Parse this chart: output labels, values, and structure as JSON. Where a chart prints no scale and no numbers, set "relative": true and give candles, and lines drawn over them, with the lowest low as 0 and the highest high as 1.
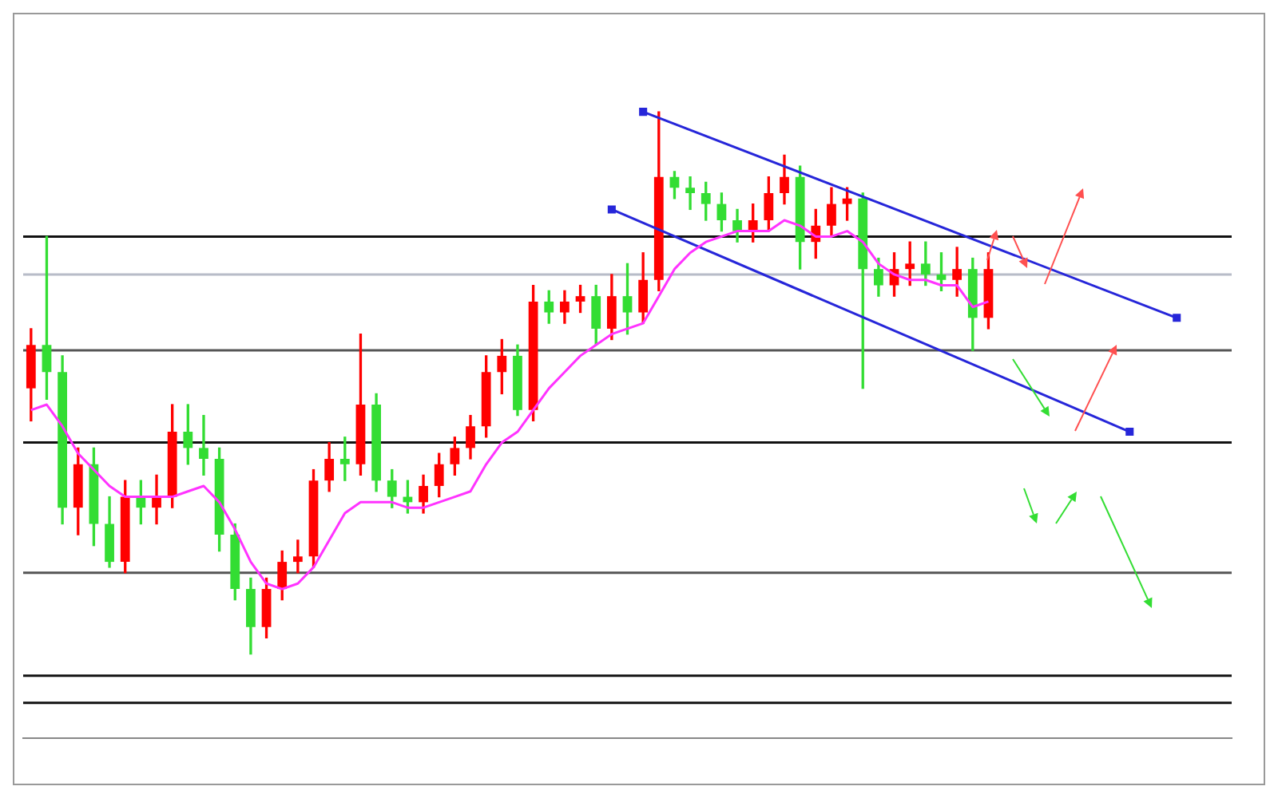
{
  "chart_data": {
    "type": "candlestick",
    "relative": true,
    "legend": false,
    "grid": false,
    "categories": [
      null,
      null,
      null,
      null,
      null,
      null,
      null,
      null,
      null,
      null,
      null,
      null,
      null,
      null,
      null,
      null,
      null,
      null,
      null,
      null,
      null,
      null,
      null,
      null,
      null,
      null,
      null,
      null,
      null,
      null,
      null,
      null,
      null,
      null,
      null,
      null,
      null,
      null,
      null,
      null,
      null,
      null,
      null,
      null,
      null,
      null,
      null,
      null,
      null,
      null,
      null,
      null,
      null,
      null,
      null,
      null,
      null,
      null,
      null,
      null,
      null,
      null,
      null,
      null,
      null,
      null,
      null,
      null,
      null,
      null,
      null,
      null,
      null,
      null,
      null,
      null,
      null
    ],
    "ohlc": [
      [
        0.49,
        0.6,
        0.43,
        0.57
      ],
      [
        0.57,
        0.77,
        0.47,
        0.52
      ],
      [
        0.52,
        0.55,
        0.24,
        0.27
      ],
      [
        0.27,
        0.38,
        0.22,
        0.35
      ],
      [
        0.35,
        0.38,
        0.2,
        0.24
      ],
      [
        0.24,
        0.29,
        0.16,
        0.17
      ],
      [
        0.17,
        0.32,
        0.15,
        0.29
      ],
      [
        0.29,
        0.32,
        0.24,
        0.27
      ],
      [
        0.27,
        0.33,
        0.24,
        0.29
      ],
      [
        0.29,
        0.46,
        0.27,
        0.41
      ],
      [
        0.41,
        0.46,
        0.35,
        0.38
      ],
      [
        0.38,
        0.44,
        0.33,
        0.36
      ],
      [
        0.36,
        0.38,
        0.19,
        0.22
      ],
      [
        0.22,
        0.24,
        0.1,
        0.12
      ],
      [
        0.12,
        0.14,
        0.0,
        0.05
      ],
      [
        0.05,
        0.14,
        0.03,
        0.12
      ],
      [
        0.12,
        0.19,
        0.1,
        0.17
      ],
      [
        0.17,
        0.21,
        0.15,
        0.18
      ],
      [
        0.18,
        0.34,
        0.16,
        0.32
      ],
      [
        0.32,
        0.39,
        0.3,
        0.36
      ],
      [
        0.36,
        0.4,
        0.32,
        0.35
      ],
      [
        0.35,
        0.59,
        0.33,
        0.46
      ],
      [
        0.46,
        0.48,
        0.3,
        0.32
      ],
      [
        0.32,
        0.34,
        0.27,
        0.29
      ],
      [
        0.29,
        0.32,
        0.26,
        0.28
      ],
      [
        0.28,
        0.33,
        0.26,
        0.31
      ],
      [
        0.31,
        0.37,
        0.29,
        0.35
      ],
      [
        0.35,
        0.4,
        0.33,
        0.38
      ],
      [
        0.38,
        0.44,
        0.36,
        0.42
      ],
      [
        0.42,
        0.55,
        0.4,
        0.52
      ],
      [
        0.52,
        0.58,
        0.48,
        0.55
      ],
      [
        0.55,
        0.57,
        0.44,
        0.45
      ],
      [
        0.45,
        0.68,
        0.43,
        0.65
      ],
      [
        0.65,
        0.67,
        0.61,
        0.63
      ],
      [
        0.63,
        0.67,
        0.61,
        0.65
      ],
      [
        0.65,
        0.68,
        0.63,
        0.66
      ],
      [
        0.66,
        0.68,
        0.57,
        0.6
      ],
      [
        0.6,
        0.7,
        0.58,
        0.66
      ],
      [
        0.66,
        0.72,
        0.59,
        0.63
      ],
      [
        0.63,
        0.74,
        0.61,
        0.69
      ],
      [
        0.69,
        1.0,
        0.67,
        0.88
      ],
      [
        0.88,
        0.89,
        0.84,
        0.86
      ],
      [
        0.86,
        0.88,
        0.82,
        0.85
      ],
      [
        0.85,
        0.87,
        0.8,
        0.83
      ],
      [
        0.83,
        0.85,
        0.78,
        0.8
      ],
      [
        0.8,
        0.82,
        0.76,
        0.78
      ],
      [
        0.78,
        0.83,
        0.76,
        0.8
      ],
      [
        0.8,
        0.88,
        0.78,
        0.85
      ],
      [
        0.85,
        0.92,
        0.83,
        0.88
      ],
      [
        0.88,
        0.9,
        0.71,
        0.76
      ],
      [
        0.76,
        0.82,
        0.73,
        0.79
      ],
      [
        0.79,
        0.86,
        0.77,
        0.83
      ],
      [
        0.83,
        0.86,
        0.8,
        0.84
      ],
      [
        0.84,
        0.85,
        0.49,
        0.71
      ],
      [
        0.71,
        0.73,
        0.66,
        0.68
      ],
      [
        0.68,
        0.74,
        0.66,
        0.71
      ],
      [
        0.71,
        0.76,
        0.68,
        0.72
      ],
      [
        0.72,
        0.76,
        0.68,
        0.7
      ],
      [
        0.7,
        0.74,
        0.67,
        0.69
      ],
      [
        0.69,
        0.75,
        0.66,
        0.71
      ],
      [
        0.71,
        0.73,
        0.56,
        0.62
      ],
      [
        0.62,
        0.74,
        0.6,
        0.71
      ],
      null,
      null,
      null,
      null,
      null,
      null,
      null,
      null,
      null,
      null,
      null,
      null,
      null,
      null,
      null
    ],
    "colors": [
      "#ff0000",
      "#33dd33",
      "#33dd33",
      "#ff0000",
      "#33dd33",
      "#33dd33",
      "#ff0000",
      "#33dd33",
      "#ff0000",
      "#ff0000",
      "#33dd33",
      "#33dd33",
      "#33dd33",
      "#33dd33",
      "#33dd33",
      "#ff0000",
      "#ff0000",
      "#ff0000",
      "#ff0000",
      "#ff0000",
      "#33dd33",
      "#ff0000",
      "#33dd33",
      "#33dd33",
      "#33dd33",
      "#ff0000",
      "#ff0000",
      "#ff0000",
      "#ff0000",
      "#ff0000",
      "#ff0000",
      "#33dd33",
      "#ff0000",
      "#33dd33",
      "#ff0000",
      "#ff0000",
      "#33dd33",
      "#ff0000",
      "#33dd33",
      "#ff0000",
      "#ff0000",
      "#33dd33",
      "#33dd33",
      "#33dd33",
      "#33dd33",
      "#33dd33",
      "#ff0000",
      "#ff0000",
      "#ff0000",
      "#33dd33",
      "#ff0000",
      "#ff0000",
      "#ff0000",
      "#33dd33",
      "#33dd33",
      "#ff0000",
      "#ff0000",
      "#33dd33",
      "#33dd33",
      "#ff0000",
      "#33dd33",
      "#ff0000",
      null,
      null,
      null,
      null,
      null,
      null,
      null,
      null,
      null,
      null,
      null,
      null,
      null,
      null,
      null
    ],
    "series": [
      {
        "type": "line",
        "color": "#ff33ff",
        "marker": "none",
        "values": [
          0.45,
          0.46,
          0.42,
          0.37,
          0.34,
          0.31,
          0.29,
          0.29,
          0.29,
          0.29,
          0.3,
          0.31,
          0.28,
          0.23,
          0.17,
          0.13,
          0.12,
          0.13,
          0.16,
          0.21,
          0.26,
          0.28,
          0.28,
          0.28,
          0.27,
          0.27,
          0.28,
          0.29,
          0.3,
          0.35,
          0.39,
          0.41,
          0.45,
          0.49,
          0.52,
          0.55,
          0.57,
          0.59,
          0.6,
          0.61,
          0.66,
          0.71,
          0.74,
          0.76,
          0.77,
          0.78,
          0.78,
          0.78,
          0.8,
          0.79,
          0.77,
          0.77,
          0.78,
          0.76,
          0.72,
          0.7,
          0.69,
          0.69,
          0.68,
          0.68,
          0.64,
          0.65,
          null,
          null,
          null,
          null,
          null,
          null,
          null,
          null,
          null,
          null,
          null,
          null,
          null,
          null,
          null
        ]
      },
      {
        "type": "line",
        "color": "#2626d9",
        "marker": "square",
        "values": [
          null,
          null,
          null,
          null,
          null,
          null,
          null,
          null,
          null,
          null,
          null,
          null,
          null,
          null,
          null,
          null,
          null,
          null,
          null,
          null,
          null,
          null,
          null,
          null,
          null,
          null,
          null,
          null,
          null,
          null,
          null,
          null,
          null,
          null,
          null,
          null,
          null,
          null,
          null,
          1.0,
          null,
          null,
          null,
          null,
          null,
          null,
          null,
          null,
          null,
          null,
          null,
          null,
          null,
          null,
          null,
          null,
          null,
          null,
          null,
          null,
          null,
          null,
          null,
          null,
          null,
          null,
          null,
          null,
          null,
          null,
          null,
          null,
          null,
          0.62,
          null,
          null,
          null
        ]
      },
      {
        "type": "line",
        "color": "#2626d9",
        "marker": "square",
        "values": [
          null,
          null,
          null,
          null,
          null,
          null,
          null,
          null,
          null,
          null,
          null,
          null,
          null,
          null,
          null,
          null,
          null,
          null,
          null,
          null,
          null,
          null,
          null,
          null,
          null,
          null,
          null,
          null,
          null,
          null,
          null,
          null,
          null,
          null,
          null,
          null,
          null,
          0.82,
          null,
          null,
          null,
          null,
          null,
          null,
          null,
          null,
          null,
          null,
          null,
          null,
          null,
          null,
          null,
          null,
          null,
          null,
          null,
          null,
          null,
          null,
          null,
          null,
          null,
          null,
          null,
          null,
          null,
          null,
          null,
          null,
          0.41,
          null,
          null,
          null,
          null,
          null,
          null
        ]
      }
    ],
    "ref_lines": [
      {
        "axis": "y",
        "value": 0.77,
        "color": "#111111"
      },
      {
        "axis": "y",
        "value": 0.7,
        "color": "#b8bcc8"
      },
      {
        "axis": "y",
        "value": 0.56,
        "color": "#555555"
      },
      {
        "axis": "y",
        "value": 0.39,
        "color": "#111111"
      },
      {
        "axis": "y",
        "value": 0.15,
        "color": "#555555"
      },
      {
        "axis": "y",
        "value": -0.04,
        "color": "#111111"
      },
      {
        "axis": "y",
        "value": -0.09,
        "color": "#111111"
      }
    ]
  }
}
